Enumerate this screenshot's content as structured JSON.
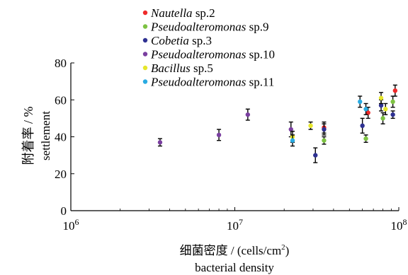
{
  "chart_data": {
    "type": "scatter",
    "title": "",
    "xlabel_cn": "细菌密度 / (cells/cm",
    "xlabel_cn_sup": "2",
    "xlabel_cn_end": ")",
    "xlabel_en": "bacterial density",
    "ylabel_cn": "附着率 / %",
    "ylabel_en": "settlement",
    "x_scale": "log",
    "xlim": [
      1000000,
      100000000
    ],
    "ylim": [
      0,
      80
    ],
    "x_ticks": [
      {
        "base": "10",
        "exp": "6"
      },
      {
        "base": "10",
        "exp": "7"
      },
      {
        "base": "10",
        "exp": "8"
      }
    ],
    "y_ticks": [
      "0",
      "20",
      "40",
      "60",
      "80"
    ],
    "grid": false,
    "legend_position": "top-left",
    "series": [
      {
        "name_italic": "Nautella",
        "name_rest": " sp.2",
        "color": "#ee2a2a",
        "points": [
          {
            "x": 35000000,
            "y": 45,
            "err": 3
          },
          {
            "x": 65000000,
            "y": 53,
            "err": 3
          },
          {
            "x": 95000000,
            "y": 65,
            "err": 3
          }
        ]
      },
      {
        "name_italic": "Pseudoalteromonas",
        "name_rest": " sp.9",
        "color": "#7dc242",
        "points": [
          {
            "x": 35000000,
            "y": 38,
            "err": 2
          },
          {
            "x": 63000000,
            "y": 39,
            "err": 2
          },
          {
            "x": 80000000,
            "y": 50,
            "err": 3
          },
          {
            "x": 92000000,
            "y": 59,
            "err": 3
          }
        ]
      },
      {
        "name_italic": "Cobetia",
        "name_rest": " sp.3",
        "color": "#2e3192",
        "points": [
          {
            "x": 31000000,
            "y": 30,
            "err": 4
          },
          {
            "x": 35000000,
            "y": 44,
            "err": 3
          },
          {
            "x": 60000000,
            "y": 46,
            "err": 4
          },
          {
            "x": 78000000,
            "y": 57,
            "err": 3
          },
          {
            "x": 92000000,
            "y": 52,
            "err": 2
          }
        ]
      },
      {
        "name_italic": "Pseudoalteromonas",
        "name_rest": " sp.10",
        "color": "#7a3fa0",
        "points": [
          {
            "x": 3500000,
            "y": 37,
            "err": 2
          },
          {
            "x": 8000000,
            "y": 41,
            "err": 3
          },
          {
            "x": 12000000,
            "y": 52,
            "err": 3
          },
          {
            "x": 22000000,
            "y": 44,
            "err": 4
          }
        ]
      },
      {
        "name_italic": "Bacillus",
        "name_rest": " sp.5",
        "color": "#e6e62a",
        "points": [
          {
            "x": 22500000,
            "y": 40,
            "err": 3
          },
          {
            "x": 29000000,
            "y": 46,
            "err": 2
          },
          {
            "x": 78000000,
            "y": 61,
            "err": 3
          },
          {
            "x": 83000000,
            "y": 55,
            "err": 3
          }
        ]
      },
      {
        "name_italic": "Pseudoalteromonas",
        "name_rest": " sp.11",
        "color": "#29abe2",
        "points": [
          {
            "x": 22500000,
            "y": 38,
            "err": 3
          },
          {
            "x": 58000000,
            "y": 59,
            "err": 3
          },
          {
            "x": 63000000,
            "y": 55,
            "err": 3
          }
        ]
      }
    ]
  }
}
